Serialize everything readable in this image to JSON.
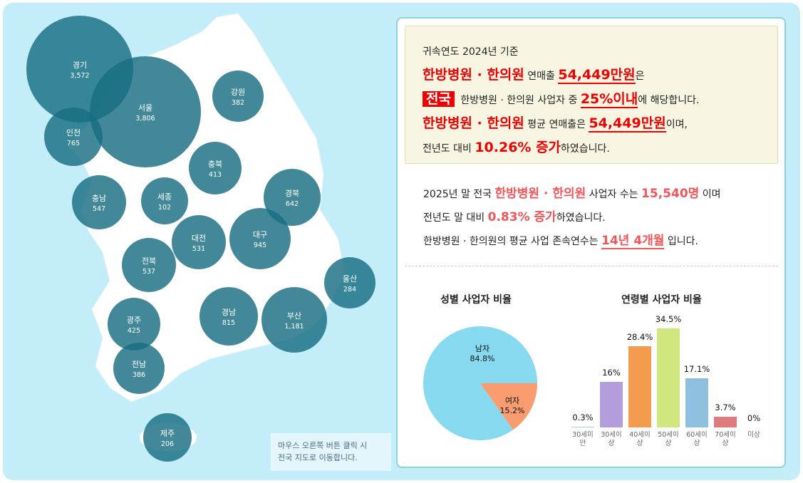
{
  "map": {
    "regions": [
      {
        "name": "경기",
        "value": "3,572"
      },
      {
        "name": "서울",
        "value": "3,806"
      },
      {
        "name": "인천",
        "value": "765"
      },
      {
        "name": "강원",
        "value": "382"
      },
      {
        "name": "충북",
        "value": "413"
      },
      {
        "name": "충남",
        "value": "547"
      },
      {
        "name": "세종",
        "value": "102"
      },
      {
        "name": "경북",
        "value": "642"
      },
      {
        "name": "대전",
        "value": "531"
      },
      {
        "name": "대구",
        "value": "945"
      },
      {
        "name": "전북",
        "value": "537"
      },
      {
        "name": "울산",
        "value": "284"
      },
      {
        "name": "광주",
        "value": "425"
      },
      {
        "name": "경남",
        "value": "815"
      },
      {
        "name": "부산",
        "value": "1,181"
      },
      {
        "name": "전남",
        "value": "386"
      },
      {
        "name": "제주",
        "value": "206"
      }
    ],
    "hint_line1": "마우스 오른쪽 버튼 클릭 시",
    "hint_line2": "전국 지도로 이동합니다.",
    "bubble_color": "#186e82"
  },
  "summary": {
    "base_year": "귀속연도 2024년 기준",
    "biz": "한방병원 · 한의원",
    "t1": " 연매출 ",
    "rev": "54,449만원",
    "t2": "은",
    "badge": "전국",
    "t3": " 한방병원 · 한의원 사업자 중 ",
    "pct": "25%이내",
    "t4": "에 해당합니다.",
    "t5": " 평균 연매출은 ",
    "t6": "이며,",
    "t7": "전년도 대비 ",
    "growth": "10.26% 증가",
    "t8": "하였습니다."
  },
  "stats": {
    "s1": "2025년 말 전국 ",
    "biz": "한방병원 · 한의원",
    "s2": " 사업자 수는 ",
    "count": "15,540명",
    "s3": " 이며",
    "s4": "전년도 말 대비 ",
    "growth": "0.83% 증가",
    "s5": "하였습니다.",
    "s6": "한방병원 · 한의원의 평균 사업 존속연수는 ",
    "years": "14년 4개월",
    "s7": " 입니다."
  },
  "chart_data": [
    {
      "type": "pie",
      "title": "성별 사업자 비율",
      "slices": [
        {
          "label": "남자",
          "value": 84.8,
          "display": "84.8%",
          "color": "#87d9ef"
        },
        {
          "label": "여자",
          "value": 15.2,
          "display": "15.2%",
          "color": "#f99c6f"
        }
      ]
    },
    {
      "type": "bar",
      "title": "연령별 사업자 비율",
      "categories": [
        [
          "30세미",
          "만"
        ],
        [
          "30세이",
          "상"
        ],
        [
          "40세이",
          "상"
        ],
        [
          "50세이",
          "상"
        ],
        [
          "60세이",
          "상"
        ],
        [
          "70세이",
          "상"
        ],
        [
          "미상",
          ""
        ]
      ],
      "values": [
        0.3,
        16,
        28.4,
        34.5,
        17.1,
        3.7,
        0
      ],
      "labels": [
        "0.3%",
        "16%",
        "28.4%",
        "34.5%",
        "17.1%",
        "3.7%",
        "0%"
      ],
      "colors": [
        "#b5c8e6",
        "#b39ddb",
        "#f39c4f",
        "#d0e67e",
        "#8fbfdf",
        "#df7a7e",
        "#cccccc"
      ]
    }
  ]
}
